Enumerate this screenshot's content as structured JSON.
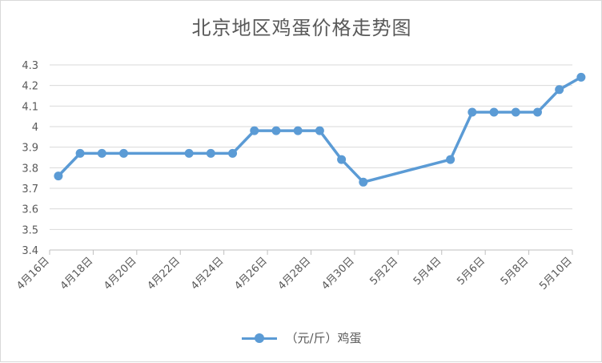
{
  "chart_data": {
    "type": "line",
    "title": "北京地区鸡蛋价格走势图",
    "xlabel": "",
    "ylabel": "",
    "ylim": [
      3.4,
      4.3
    ],
    "ytick_labels": [
      "3.4",
      "3.5",
      "3.6",
      "3.7",
      "3.8",
      "3.9",
      "4",
      "4.1",
      "4.2",
      "4.3"
    ],
    "xtick_labels": [
      "4月16日",
      "4月18日",
      "4月20日",
      "4月22日",
      "4月24日",
      "4月26日",
      "4月28日",
      "4月30日",
      "5月2日",
      "5月4日",
      "5月6日",
      "5月8日",
      "5月10日"
    ],
    "x_range_days": [
      0,
      24
    ],
    "grid": true,
    "legend_position": "bottom",
    "series": [
      {
        "name": "（元/斤）鸡蛋",
        "color": "#5b9bd5",
        "points": [
          {
            "x": "4月16日",
            "day": 0.4,
            "y": 3.76
          },
          {
            "x": "4月17日",
            "day": 1.4,
            "y": 3.87
          },
          {
            "x": "4月18日",
            "day": 2.4,
            "y": 3.87
          },
          {
            "x": "4月19日",
            "day": 3.4,
            "y": 3.87
          },
          {
            "x": "4月22日",
            "day": 6.4,
            "y": 3.87
          },
          {
            "x": "4月23日",
            "day": 7.4,
            "y": 3.87
          },
          {
            "x": "4月24日",
            "day": 8.4,
            "y": 3.87
          },
          {
            "x": "4月25日",
            "day": 9.4,
            "y": 3.98
          },
          {
            "x": "4月26日",
            "day": 10.4,
            "y": 3.98
          },
          {
            "x": "4月27日",
            "day": 11.4,
            "y": 3.98
          },
          {
            "x": "4月28日",
            "day": 12.4,
            "y": 3.98
          },
          {
            "x": "4月29日",
            "day": 13.4,
            "y": 3.84
          },
          {
            "x": "4月30日",
            "day": 14.4,
            "y": 3.73
          },
          {
            "x": "5月4日",
            "day": 18.4,
            "y": 3.84
          },
          {
            "x": "5月5日",
            "day": 19.4,
            "y": 4.07
          },
          {
            "x": "5月6日",
            "day": 20.4,
            "y": 4.07
          },
          {
            "x": "5月7日",
            "day": 21.4,
            "y": 4.07
          },
          {
            "x": "5月8日",
            "day": 22.4,
            "y": 4.07
          },
          {
            "x": "5月9日",
            "day": 23.4,
            "y": 4.18
          },
          {
            "x": "5月10日",
            "day": 24.4,
            "y": 4.24
          }
        ]
      }
    ]
  }
}
